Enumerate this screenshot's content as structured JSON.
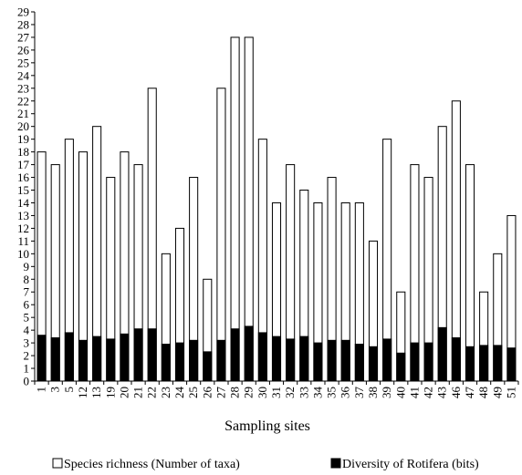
{
  "chart_data": {
    "type": "bar",
    "subtype": "overlaid",
    "title": "",
    "xlabel": "Sampling sites",
    "ylabel": "",
    "ylim": [
      0,
      29
    ],
    "yticks": [
      0,
      1,
      2,
      3,
      4,
      5,
      6,
      7,
      8,
      9,
      10,
      11,
      12,
      13,
      14,
      15,
      16,
      17,
      18,
      19,
      20,
      21,
      22,
      23,
      24,
      25,
      26,
      27,
      28,
      29
    ],
    "grid": false,
    "legend_position": "bottom",
    "categories": [
      "1",
      "3",
      "5",
      "12",
      "13",
      "19",
      "20",
      "21",
      "22",
      "23",
      "24",
      "25",
      "26",
      "27",
      "28",
      "29",
      "30",
      "31",
      "32",
      "33",
      "34",
      "35",
      "36",
      "37",
      "38",
      "39",
      "40",
      "41",
      "42",
      "43",
      "46",
      "47",
      "48",
      "49",
      "51"
    ],
    "series": [
      {
        "name": "Species richness (Number of taxa)",
        "color": "#ffffff",
        "values": [
          18,
          17,
          19,
          18,
          20,
          16,
          18,
          17,
          23,
          10,
          12,
          16,
          8,
          23,
          27,
          27,
          19,
          14,
          17,
          15,
          14,
          16,
          14,
          14,
          11,
          19,
          7,
          17,
          16,
          20,
          22,
          17,
          7,
          10,
          13
        ]
      },
      {
        "name": "Diversity of Rotifera (bits)",
        "color": "#000000",
        "values": [
          3.6,
          3.4,
          3.8,
          3.2,
          3.5,
          3.3,
          3.7,
          4.1,
          4.1,
          2.9,
          3.0,
          3.2,
          2.3,
          3.2,
          4.1,
          4.3,
          3.8,
          3.5,
          3.3,
          3.5,
          3.0,
          3.2,
          3.2,
          2.9,
          2.7,
          3.3,
          2.2,
          3.0,
          3.0,
          4.2,
          3.4,
          2.7,
          2.8,
          2.8,
          2.6
        ]
      }
    ]
  }
}
